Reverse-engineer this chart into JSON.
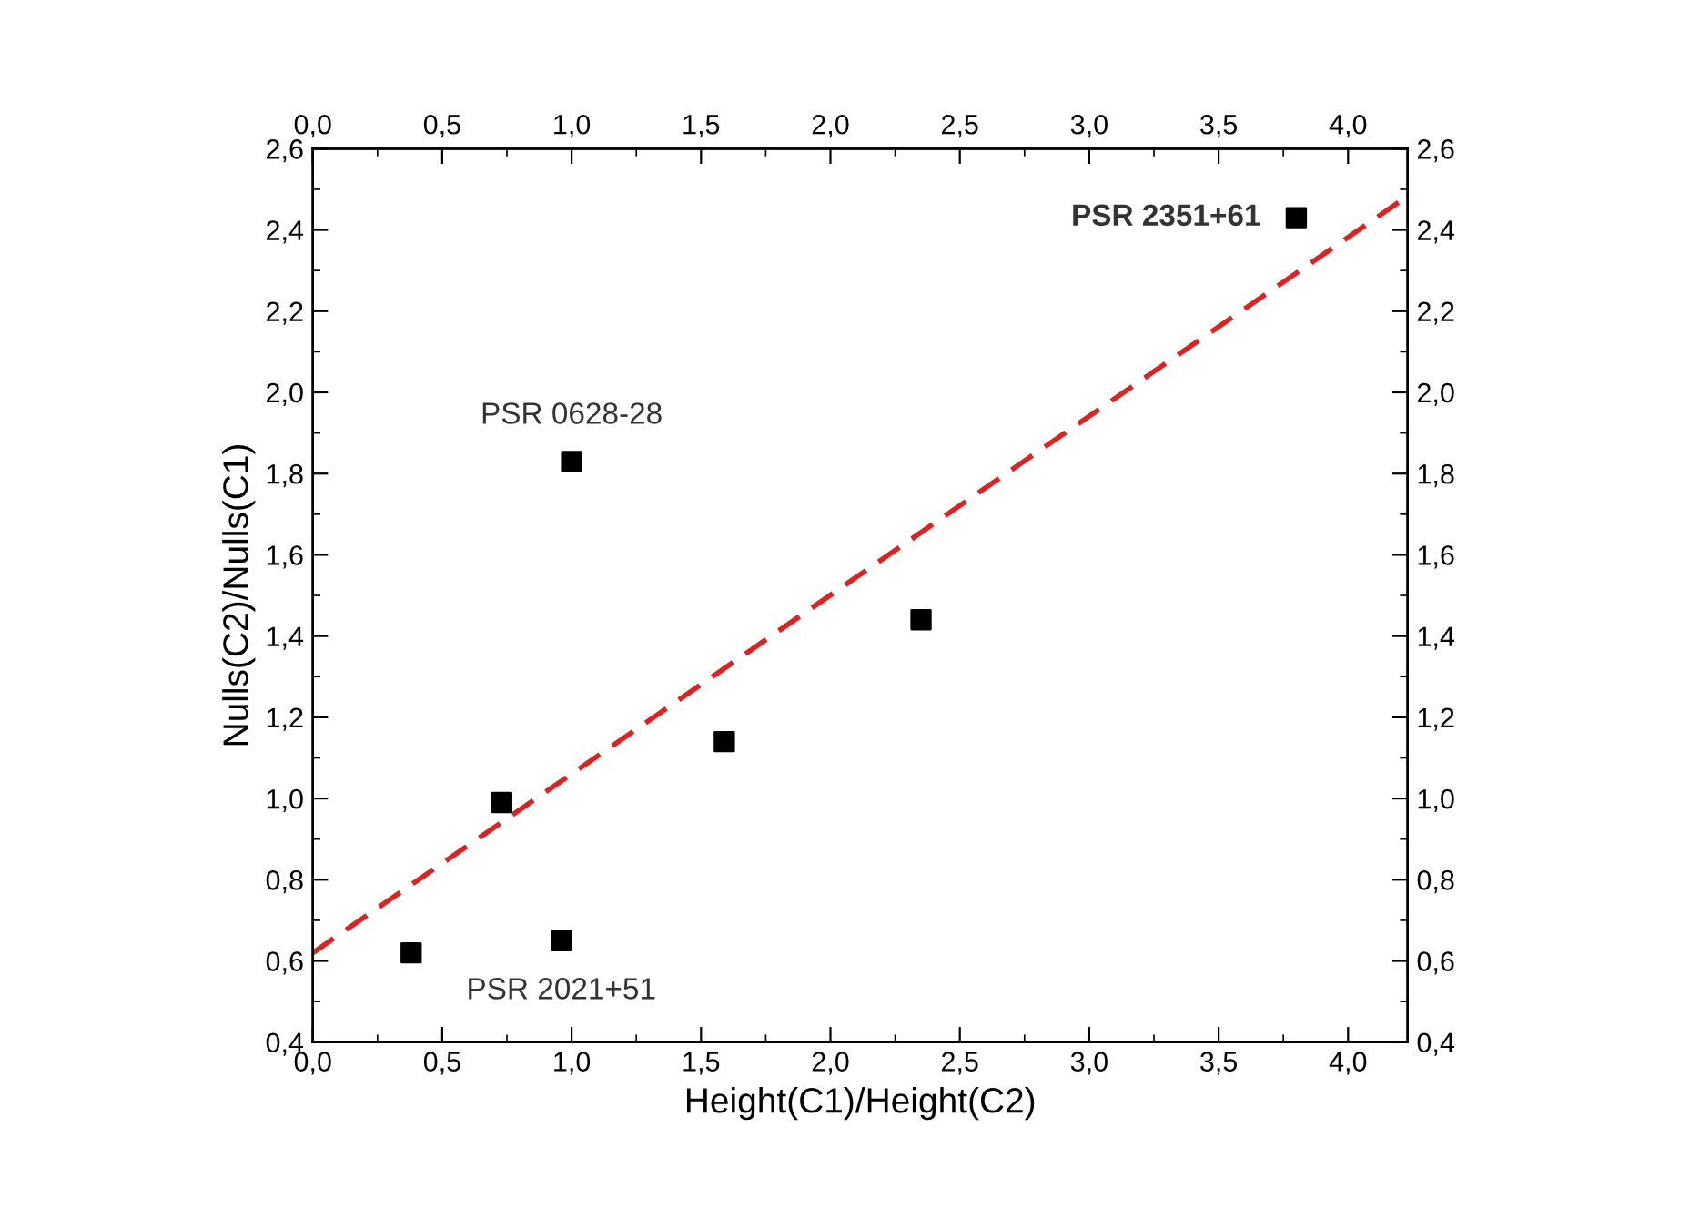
{
  "chart_data": {
    "type": "scatter",
    "xlabel": "Height(C1)/Height(C2)",
    "ylabel": "Nulls(C2)/Nulls(C1)",
    "xlim": [
      0,
      4.23
    ],
    "ylim": [
      0.4,
      2.6
    ],
    "x2lim": [
      0,
      4.23
    ],
    "y2lim": [
      0.4,
      2.6
    ],
    "xticks": [
      {
        "value": 0,
        "label": "0,0"
      },
      {
        "value": 0.5,
        "label": "0,5"
      },
      {
        "value": 1,
        "label": "1,0"
      },
      {
        "value": 1.5,
        "label": "1,5"
      },
      {
        "value": 2,
        "label": "2,0"
      },
      {
        "value": 2.5,
        "label": "2,5"
      },
      {
        "value": 3,
        "label": "3,0"
      },
      {
        "value": 3.5,
        "label": "3,5"
      },
      {
        "value": 4,
        "label": "4,0"
      }
    ],
    "x2ticks": [
      {
        "value": 0,
        "label": "0,0"
      },
      {
        "value": 0.5,
        "label": "0,5"
      },
      {
        "value": 1,
        "label": "1,0"
      },
      {
        "value": 1.5,
        "label": "1,5"
      },
      {
        "value": 2,
        "label": "2,0"
      },
      {
        "value": 2.5,
        "label": "2,5"
      },
      {
        "value": 3,
        "label": "3,0"
      },
      {
        "value": 3.5,
        "label": "3,5"
      },
      {
        "value": 4,
        "label": "4,0"
      }
    ],
    "yticks": [
      {
        "value": 0.4,
        "label": "0,4"
      },
      {
        "value": 0.6,
        "label": "0,6"
      },
      {
        "value": 0.8,
        "label": "0,8"
      },
      {
        "value": 1.0,
        "label": "1,0"
      },
      {
        "value": 1.2,
        "label": "1,2"
      },
      {
        "value": 1.4,
        "label": "1,4"
      },
      {
        "value": 1.6,
        "label": "1,6"
      },
      {
        "value": 1.8,
        "label": "1,8"
      },
      {
        "value": 2.0,
        "label": "2,0"
      },
      {
        "value": 2.2,
        "label": "2,2"
      },
      {
        "value": 2.4,
        "label": "2,4"
      },
      {
        "value": 2.6,
        "label": "2,6"
      }
    ],
    "y2ticks": [
      {
        "value": 0.4,
        "label": "0,4"
      },
      {
        "value": 0.6,
        "label": "0,6"
      },
      {
        "value": 0.8,
        "label": "0,8"
      },
      {
        "value": 1.0,
        "label": "1,0"
      },
      {
        "value": 1.2,
        "label": "1,2"
      },
      {
        "value": 1.4,
        "label": "1,4"
      },
      {
        "value": 1.6,
        "label": "1,6"
      },
      {
        "value": 1.8,
        "label": "1,8"
      },
      {
        "value": 2.0,
        "label": "2,0"
      },
      {
        "value": 2.2,
        "label": "2,2"
      },
      {
        "value": 2.4,
        "label": "2,4"
      },
      {
        "value": 2.6,
        "label": "2,6"
      }
    ],
    "marker": "square",
    "grid": false,
    "series": [
      {
        "color": "#000000",
        "x": [
          0.38,
          0.73,
          0.96,
          1.0,
          1.59,
          2.35,
          3.8
        ],
        "values": [
          0.62,
          0.99,
          0.65,
          1.83,
          1.14,
          1.44,
          2.43
        ]
      },
      {
        "type": "line",
        "color": "#dd2222",
        "line_style": "dashed",
        "marker": "none",
        "x": [
          0,
          4.2
        ],
        "values": [
          0.62,
          2.47
        ]
      }
    ],
    "annotations": [
      {
        "text": "PSR 0628-28",
        "x": 1.0,
        "y": 1.83
      },
      {
        "text": "PSR 2021+51",
        "x": 0.96,
        "y": 0.65
      },
      {
        "text": "PSR 2351+61",
        "x": 3.8,
        "y": 2.43
      }
    ]
  }
}
